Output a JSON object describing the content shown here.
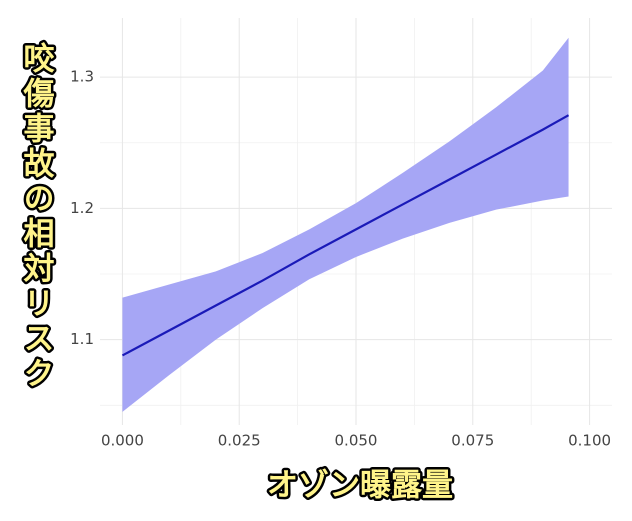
{
  "chart_data": {
    "type": "line_band",
    "xlabel": "オゾン曝露量",
    "ylabel": "咬傷事故の相対リスク",
    "x": [
      0,
      0.01,
      0.02,
      0.03,
      0.04,
      0.05,
      0.06,
      0.07,
      0.08,
      0.09,
      0.0955
    ],
    "values": [
      1.088,
      1.107,
      1.126,
      1.145,
      1.165,
      1.184,
      1.203,
      1.222,
      1.241,
      1.26,
      1.271
    ],
    "upper": [
      1.132,
      1.142,
      1.152,
      1.166,
      1.184,
      1.204,
      1.227,
      1.251,
      1.277,
      1.305,
      1.33
    ],
    "lower": [
      1.045,
      1.073,
      1.1,
      1.124,
      1.146,
      1.163,
      1.177,
      1.189,
      1.199,
      1.206,
      1.209
    ],
    "color": "#1a1ab8",
    "band_color": "#a6a6f5",
    "xlim": [
      -0.0048,
      0.1048
    ],
    "ylim": [
      1.035,
      1.345
    ],
    "xticks": [
      {
        "value": 0,
        "label": "0.000"
      },
      {
        "value": 0.025,
        "label": "0.025"
      },
      {
        "value": 0.05,
        "label": "0.050"
      },
      {
        "value": 0.075,
        "label": "0.075"
      },
      {
        "value": 0.1,
        "label": "0.100"
      }
    ],
    "yticks": [
      1.1,
      1.2,
      1.3
    ],
    "grid": true,
    "minor_grid": true
  }
}
